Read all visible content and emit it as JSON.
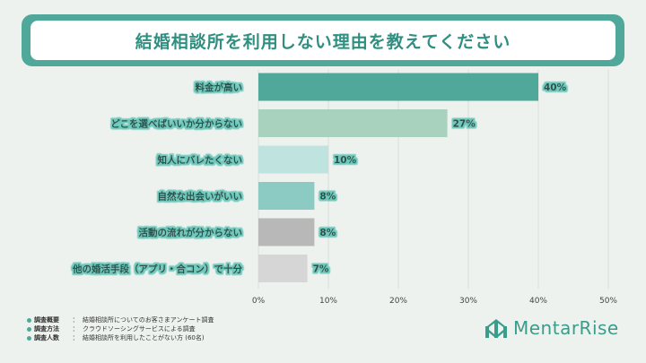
{
  "title": "結婚相談所を利用しない理由を教えてください",
  "chart_data": {
    "type": "bar",
    "orientation": "horizontal",
    "categories": [
      "料金が高い",
      "どこを選べばいいか分からない",
      "知人にバレたくない",
      "自然な出会いがいい",
      "活動の流れが分からない",
      "他の婚活手段（アプリ・合コン）で十分"
    ],
    "values": [
      40,
      27,
      10,
      8,
      8,
      7
    ],
    "value_labels": [
      "40%",
      "27%",
      "10%",
      "8%",
      "8%",
      "7%"
    ],
    "bar_colors": [
      "#4fa89a",
      "#a8d2bd",
      "#bfe3de",
      "#8ccbc4",
      "#b8b8b8",
      "#d6d6d6"
    ],
    "x_ticks": [
      "0%",
      "10%",
      "20%",
      "30%",
      "40%",
      "50%"
    ],
    "xlim": [
      0,
      50
    ],
    "grid": true
  },
  "notes": [
    {
      "key": "調査概要",
      "sep": "：",
      "value": "結婚相談所についてのお客さまアンケート調査"
    },
    {
      "key": "調査方法",
      "sep": "：",
      "value": "クラウドソーシングサービスによる調査"
    },
    {
      "key": "調査人数",
      "sep": "：",
      "value": "結婚相談所を利用したことがない方 (60名)"
    }
  ],
  "brand": {
    "name": "MentarRise",
    "color": "#3a9c8b"
  }
}
